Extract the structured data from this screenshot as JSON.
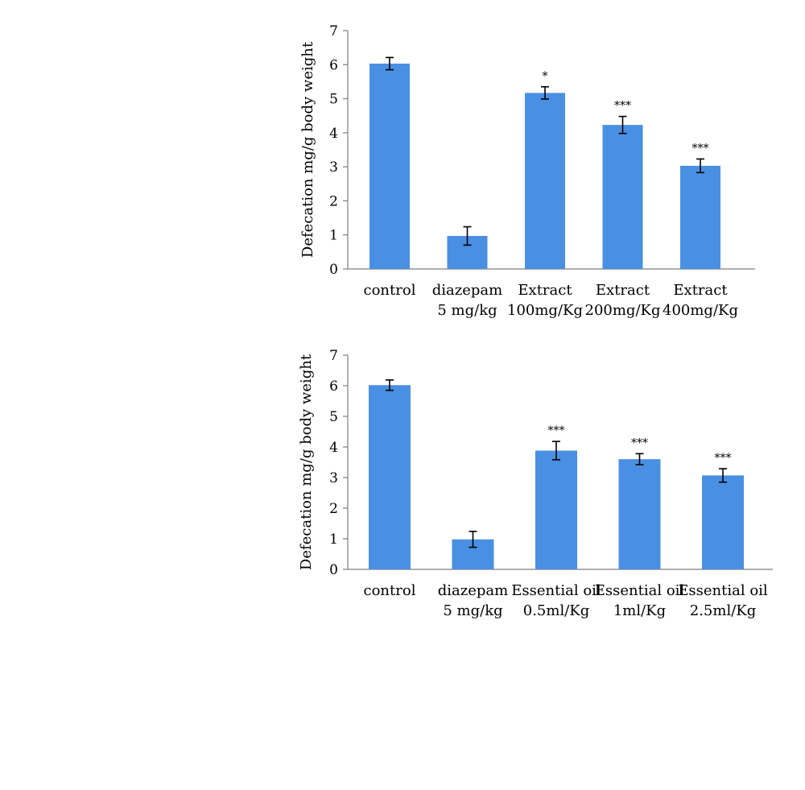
{
  "chart_data": [
    {
      "type": "bar",
      "title": "",
      "xlabel": "",
      "ylabel": "Defecation mg/g body weight",
      "ylim": [
        0,
        7
      ],
      "yticks": [
        "0",
        "1",
        "2",
        "3",
        "4",
        "5",
        "6",
        "7"
      ],
      "grid": false,
      "categories": [
        [
          "control"
        ],
        [
          "diazepam",
          "5 mg/kg"
        ],
        [
          "Extract",
          "100mg/Kg"
        ],
        [
          "Extract",
          "200mg/Kg"
        ],
        [
          "Extract",
          "400mg/Kg"
        ]
      ],
      "values": [
        6.03,
        0.97,
        5.17,
        4.23,
        3.03
      ],
      "errors": [
        0.18,
        0.27,
        0.18,
        0.25,
        0.2
      ],
      "significance": [
        "",
        "",
        "*",
        "***",
        "***"
      ],
      "colors": {
        "bar": "#4a90e2",
        "axis": "#7f7f7f"
      }
    },
    {
      "type": "bar",
      "title": "",
      "xlabel": "",
      "ylabel": "Defecation mg/g body weight",
      "ylim": [
        0,
        7
      ],
      "yticks": [
        "0",
        "1",
        "2",
        "3",
        "4",
        "5",
        "6",
        "7"
      ],
      "grid": false,
      "categories": [
        [
          "control"
        ],
        [
          "diazepam",
          "5 mg/kg"
        ],
        [
          "Essential oil",
          "0.5ml/Kg"
        ],
        [
          "Essential oil",
          "1ml/Kg"
        ],
        [
          "Essential oil",
          "2.5ml/Kg"
        ]
      ],
      "values": [
        6.02,
        0.98,
        3.88,
        3.6,
        3.07
      ],
      "errors": [
        0.17,
        0.26,
        0.3,
        0.18,
        0.22
      ],
      "significance": [
        "",
        "",
        "***",
        "***",
        "***"
      ],
      "colors": {
        "bar": "#4a90e2",
        "axis": "#7f7f7f"
      }
    }
  ]
}
